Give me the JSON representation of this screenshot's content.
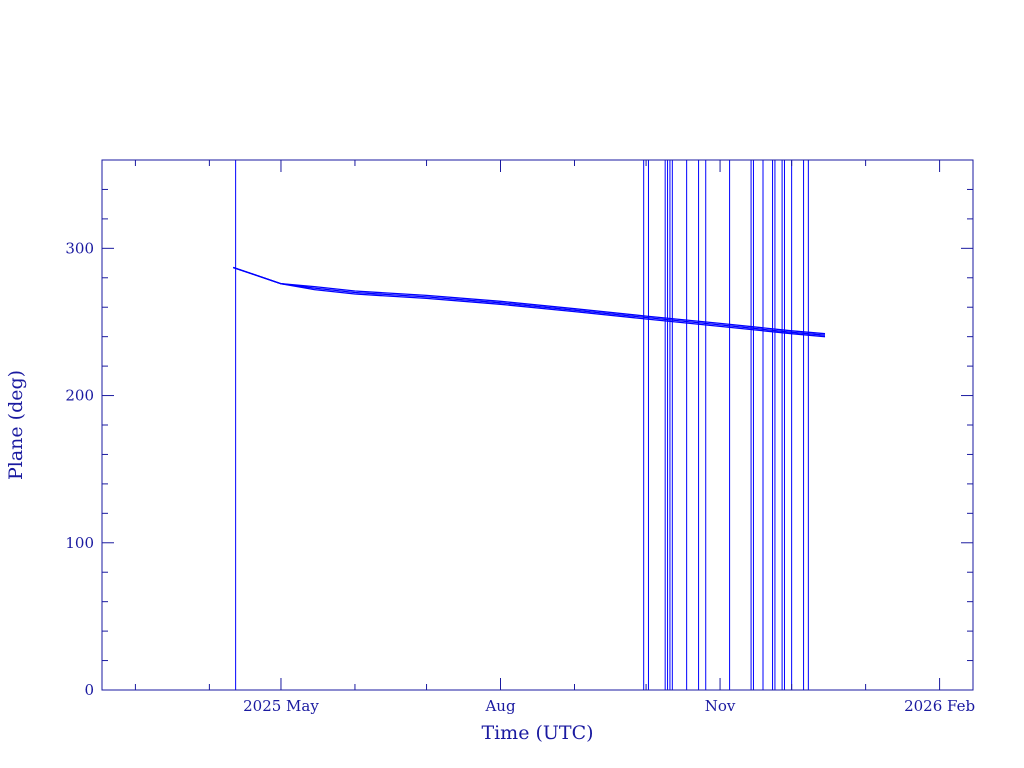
{
  "chart_data": {
    "type": "line",
    "title": "",
    "xlabel": "Time (UTC)",
    "ylabel": "Plane (deg)",
    "xlim": [
      "2025-02-15",
      "2026-02-15"
    ],
    "ylim": [
      0,
      360
    ],
    "grid": false,
    "colors": {
      "axis": "#1a1aa0",
      "series": "#0000ff"
    },
    "x_ticks": [
      {
        "label": "2025 May",
        "date": "2025-05-01"
      },
      {
        "label": "Aug",
        "date": "2025-08-01"
      },
      {
        "label": "Nov",
        "date": "2025-11-01"
      },
      {
        "label": "2026 Feb",
        "date": "2026-02-01"
      }
    ],
    "x_minor_ticks": [
      "2025-03-01",
      "2025-04-01",
      "2025-06-01",
      "2025-07-01",
      "2025-09-01",
      "2025-10-01",
      "2025-12-01",
      "2026-01-01"
    ],
    "y_ticks": [
      0,
      100,
      200,
      300
    ],
    "y_minor_step": 20,
    "series": [
      {
        "x": [
          "2025-04-11",
          "2025-04-20",
          "2025-05-01",
          "2025-05-15",
          "2025-06-01",
          "2025-07-01",
          "2025-08-01",
          "2025-09-01",
          "2025-10-01",
          "2025-11-01",
          "2025-12-01",
          "2025-12-15"
        ],
        "y": [
          287,
          282,
          276,
          272,
          269,
          266,
          262,
          257,
          252,
          247,
          242,
          240
        ]
      },
      {
        "x": [
          "2025-04-11",
          "2025-04-20",
          "2025-05-01",
          "2025-05-15",
          "2025-06-01",
          "2025-07-01",
          "2025-08-01",
          "2025-09-01",
          "2025-10-01",
          "2025-11-01",
          "2025-12-01",
          "2025-12-15"
        ],
        "y": [
          287,
          282,
          276,
          274,
          271,
          268,
          264,
          259,
          254,
          249,
          244,
          242
        ]
      },
      {
        "x": [
          "2025-04-11",
          "2025-04-20",
          "2025-05-01",
          "2025-05-15",
          "2025-06-01",
          "2025-07-01",
          "2025-08-01",
          "2025-09-01",
          "2025-10-01",
          "2025-11-01",
          "2025-12-01",
          "2025-12-15"
        ],
        "y": [
          287,
          282,
          276,
          273,
          270,
          267,
          263,
          258,
          253,
          248,
          243,
          241
        ]
      }
    ],
    "vertical_lines": [
      "2025-04-12",
      "2025-09-30",
      "2025-10-02",
      "2025-10-09",
      "2025-10-10",
      "2025-10-11",
      "2025-10-12",
      "2025-10-18",
      "2025-10-23",
      "2025-10-26",
      "2025-11-05",
      "2025-11-14",
      "2025-11-15",
      "2025-11-19",
      "2025-11-23",
      "2025-11-24",
      "2025-11-27",
      "2025-11-28",
      "2025-12-01",
      "2025-12-06",
      "2025-12-08"
    ]
  }
}
